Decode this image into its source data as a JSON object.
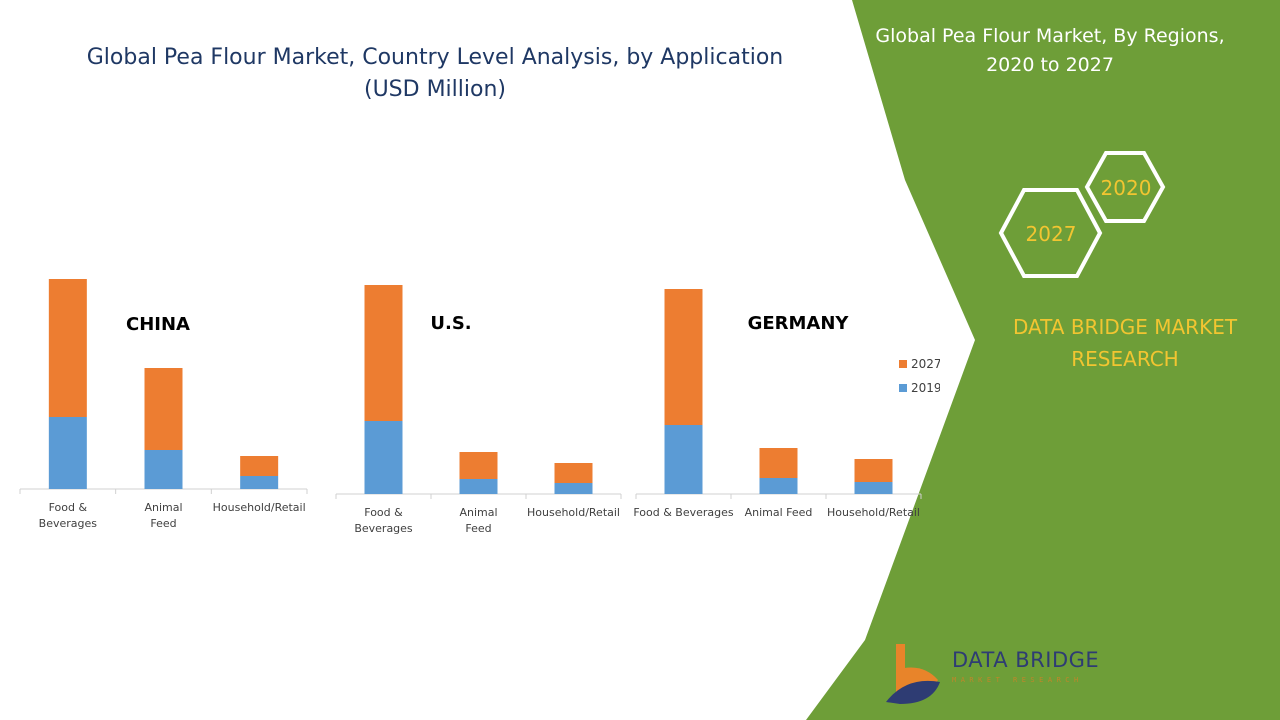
{
  "title_lines": [
    "Global Pea Flour Market, Country Level Analysis, by Application",
    "(USD Million)"
  ],
  "side_title_lines": [
    "Global Pea Flour Market, By Regions,",
    "2020 to 2027"
  ],
  "hex_labels": {
    "front": "2027",
    "back": "2020"
  },
  "brand_lines": [
    "DATA BRIDGE MARKET",
    "RESEARCH"
  ],
  "logo": {
    "name": "DATA BRIDGE",
    "tagline": "MARKET RESEARCH"
  },
  "colors": {
    "green": "#6e9e38",
    "orange": "#ed7d31",
    "blue": "#5b9bd5",
    "gold": "#f2c531",
    "title_blue": "#1f3864"
  },
  "legend": [
    {
      "name": "2027",
      "color": "#ed7d31"
    },
    {
      "name": "2019",
      "color": "#5b9bd5"
    }
  ],
  "chart_data": [
    {
      "type": "bar",
      "stacked": true,
      "label": "CHINA",
      "categories": [
        "Food & Beverages",
        "Animal Feed",
        "Household/Retail"
      ],
      "series": [
        {
          "name": "2019",
          "values": [
            72,
            39,
            13
          ]
        },
        {
          "name": "2027",
          "values": [
            138,
            82,
            20
          ]
        }
      ]
    },
    {
      "type": "bar",
      "stacked": true,
      "label": "U.S.",
      "categories": [
        "Food & Beverages",
        "Animal Feed",
        "Household/Retail"
      ],
      "series": [
        {
          "name": "2019",
          "values": [
            73,
            15,
            11
          ]
        },
        {
          "name": "2027",
          "values": [
            136,
            27,
            20
          ]
        }
      ]
    },
    {
      "type": "bar",
      "stacked": true,
      "label": "GERMANY",
      "categories": [
        "Food & Beverages",
        "Animal Feed",
        "Household/Retail"
      ],
      "series": [
        {
          "name": "2019",
          "values": [
            69,
            16,
            12
          ]
        },
        {
          "name": "2027",
          "values": [
            136,
            30,
            23
          ]
        }
      ]
    }
  ]
}
